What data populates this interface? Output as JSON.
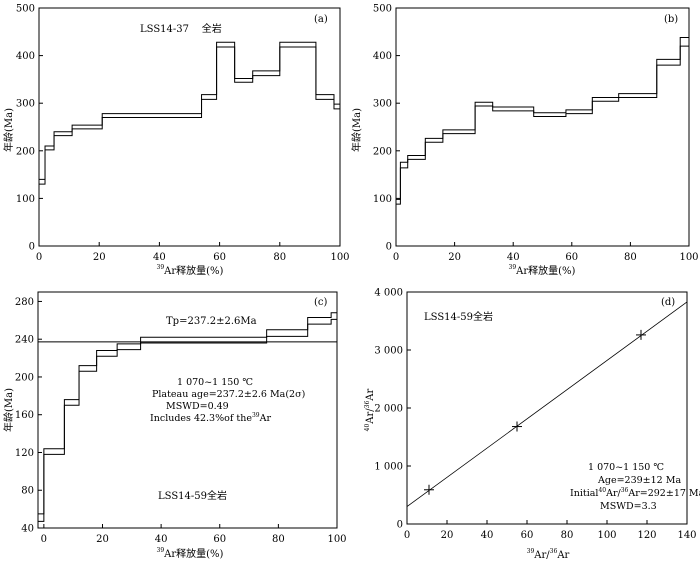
{
  "chart_data": [
    {
      "type": "line",
      "panel_label": "(a)",
      "annotation": "LSS14-37    全岩",
      "xlabel_sup": "39",
      "xlabel": "Ar释放量(%)",
      "ylabel": "年龄(Ma)",
      "xlim": [
        0,
        100
      ],
      "ylim": [
        0,
        500
      ],
      "xticks": [
        0,
        20,
        40,
        60,
        80,
        100
      ],
      "yticks": [
        0,
        100,
        200,
        300,
        400,
        500
      ],
      "grid": false,
      "steps": [
        {
          "x0": 0,
          "x1": 2,
          "upper": 140,
          "lower": 130
        },
        {
          "x0": 2,
          "x1": 5,
          "upper": 210,
          "lower": 202
        },
        {
          "x0": 5,
          "x1": 11,
          "upper": 240,
          "lower": 232
        },
        {
          "x0": 11,
          "x1": 21,
          "upper": 254,
          "lower": 246
        },
        {
          "x0": 21,
          "x1": 54,
          "upper": 278,
          "lower": 270
        },
        {
          "x0": 54,
          "x1": 59,
          "upper": 318,
          "lower": 308
        },
        {
          "x0": 59,
          "x1": 65,
          "upper": 428,
          "lower": 418
        },
        {
          "x0": 65,
          "x1": 71,
          "upper": 352,
          "lower": 344
        },
        {
          "x0": 71,
          "x1": 80,
          "upper": 368,
          "lower": 358
        },
        {
          "x0": 80,
          "x1": 92,
          "upper": 428,
          "lower": 418
        },
        {
          "x0": 92,
          "x1": 98,
          "upper": 318,
          "lower": 308
        },
        {
          "x0": 98,
          "x1": 100,
          "upper": 298,
          "lower": 288
        }
      ]
    },
    {
      "type": "line",
      "panel_label": "(b)",
      "xlabel_sup": "39",
      "xlabel": "Ar释放量(%)",
      "ylabel": "年龄(Ma)",
      "xlim": [
        0,
        100
      ],
      "ylim": [
        0,
        500
      ],
      "xticks": [
        0,
        20,
        40,
        60,
        80,
        100
      ],
      "yticks": [
        0,
        100,
        200,
        300,
        400,
        500
      ],
      "grid": false,
      "steps": [
        {
          "x0": 0,
          "x1": 1.5,
          "upper": 98,
          "lower": 88
        },
        {
          "x0": 1.5,
          "x1": 4,
          "upper": 176,
          "lower": 164
        },
        {
          "x0": 4,
          "x1": 10,
          "upper": 190,
          "lower": 182
        },
        {
          "x0": 10,
          "x1": 16,
          "upper": 226,
          "lower": 218
        },
        {
          "x0": 16,
          "x1": 27,
          "upper": 244,
          "lower": 236
        },
        {
          "x0": 27,
          "x1": 33,
          "upper": 302,
          "lower": 294
        },
        {
          "x0": 33,
          "x1": 47,
          "upper": 292,
          "lower": 284
        },
        {
          "x0": 47,
          "x1": 58,
          "upper": 280,
          "lower": 272
        },
        {
          "x0": 58,
          "x1": 67,
          "upper": 286,
          "lower": 278
        },
        {
          "x0": 67,
          "x1": 76,
          "upper": 312,
          "lower": 304
        },
        {
          "x0": 76,
          "x1": 89,
          "upper": 320,
          "lower": 312
        },
        {
          "x0": 89,
          "x1": 97,
          "upper": 392,
          "lower": 380
        },
        {
          "x0": 97,
          "x1": 100,
          "upper": 438,
          "lower": 420
        }
      ]
    },
    {
      "type": "line",
      "panel_label": "(c)",
      "plateau_label": "Tp=237.2±2.6Ma",
      "plateau_value": 237.2,
      "notes": [
        "1 070~1 150 ℃",
        "Plateau age=237.2±2.6 Ma(2σ)",
        "MSWD=0.49",
        "Includes 42.3%of the",
        "Ar"
      ],
      "sample_label": "LSS14-59全岩",
      "xlabel_sup": "39",
      "xlabel": "Ar释放量(%)",
      "ylabel": "年龄(Ma)",
      "xlim": [
        -2,
        100
      ],
      "ylim": [
        40,
        290
      ],
      "xticks": [
        0,
        20,
        40,
        60,
        80,
        100
      ],
      "yticks": [
        40,
        80,
        120,
        160,
        200,
        240,
        280
      ],
      "grid": false,
      "steps": [
        {
          "x0": -2,
          "x1": 0,
          "upper": 55,
          "lower": 47
        },
        {
          "x0": 0,
          "x1": 7,
          "upper": 124,
          "lower": 118
        },
        {
          "x0": 7,
          "x1": 12,
          "upper": 176,
          "lower": 170
        },
        {
          "x0": 12,
          "x1": 18,
          "upper": 212,
          "lower": 206
        },
        {
          "x0": 18,
          "x1": 25,
          "upper": 228,
          "lower": 222
        },
        {
          "x0": 25,
          "x1": 33,
          "upper": 235,
          "lower": 229
        },
        {
          "x0": 33,
          "x1": 76,
          "upper": 242,
          "lower": 236
        },
        {
          "x0": 76,
          "x1": 90,
          "upper": 250,
          "lower": 243
        },
        {
          "x0": 90,
          "x1": 98,
          "upper": 263,
          "lower": 256
        },
        {
          "x0": 98,
          "x1": 100,
          "upper": 268,
          "lower": 261
        }
      ]
    },
    {
      "type": "scatter",
      "panel_label": "(d)",
      "sample_label": "LSS14-59全岩",
      "notes": [
        "1 070~1 150 ℃",
        "Age=239±12 Ma",
        "Initial",
        "Ar/",
        "Ar=292±17 Ma",
        "MSWD=3.3"
      ],
      "xlabel_sup1": "39",
      "xlabel_mid": "Ar/",
      "xlabel_sup2": "36",
      "xlabel_end": "Ar",
      "ylabel_sup1": "40",
      "ylabel_mid": "Ar/",
      "ylabel_sup2": "36",
      "ylabel_end": "Ar",
      "xlim": [
        0,
        140
      ],
      "ylim": [
        0,
        4000
      ],
      "xticks": [
        0,
        20,
        40,
        60,
        80,
        100,
        120,
        140
      ],
      "yticks": [
        0,
        1000,
        2000,
        3000,
        4000
      ],
      "ytick_labels": [
        "0",
        "1 000",
        "2 000",
        "3 000",
        "4 000"
      ],
      "grid": false,
      "points": [
        {
          "x": 11,
          "y": 590
        },
        {
          "x": 55,
          "y": 1680
        },
        {
          "x": 117,
          "y": 3260
        }
      ],
      "fit_line": {
        "intercept": 300,
        "slope": 25.2
      }
    }
  ]
}
